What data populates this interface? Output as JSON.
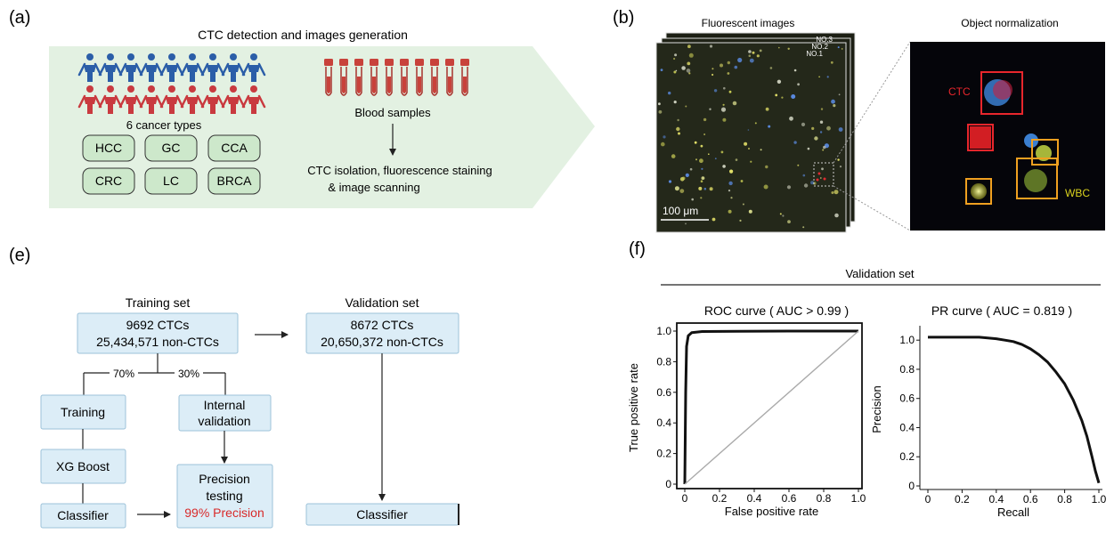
{
  "panels": {
    "a": {
      "label": "(a)",
      "title": "CTC detection and images generation",
      "cancer_label": "6 cancer types",
      "cancer_types": [
        "HCC",
        "GC",
        "CCA",
        "CRC",
        "LC",
        "BRCA"
      ],
      "blood_label": "Blood samples",
      "process_line1": "CTC isolation, fluorescence staining",
      "process_line2": "& image scanning",
      "colors": {
        "arrow_bg": "#e3f1e2",
        "person_blue": "#2b5ea8",
        "person_red": "#c93a3f",
        "pill": "#cde8cb",
        "tube": "#c8423b"
      }
    },
    "b": {
      "label": "(b)",
      "fluor_title": "Fluorescent images",
      "norm_title": "Object normalization",
      "stack_labels": [
        "NO.3",
        "NO.2",
        "NO.1"
      ],
      "scale_bar": "100 μm",
      "ctc_label": "CTC",
      "wbc_label": "WBC",
      "colors": {
        "ctc": "#e8262c",
        "wbc": "#f0a020",
        "wbc_text": "#d9d21e"
      }
    },
    "e": {
      "label": "(e)",
      "training_title": "Training set",
      "training_line1": "9692 CTCs",
      "training_line2": "25,434,571 non-CTCs",
      "validation_title": "Validation set",
      "validation_line1": "8672 CTCs",
      "validation_line2": "20,650,372 non-CTCs",
      "split_left": "70%",
      "split_right": "30%",
      "training": "Training",
      "internal_line1": "Internal",
      "internal_line2": "validation",
      "xgboost": "XG Boost",
      "precision_line1": "Precision",
      "precision_line2": "testing",
      "precision_value": "99% Precision",
      "classifier_left": "Classifier",
      "classifier_right": "Classifier",
      "colors": {
        "box_fill": "#dcedf7",
        "box_stroke": "#9cc2d9",
        "highlight": "#d82a2a"
      }
    },
    "f": {
      "label": "(f)",
      "header": "Validation set"
    }
  },
  "chart_data": [
    {
      "type": "line",
      "title": "ROC curve ( AUC > 0.99 )",
      "xlabel": "False positive rate",
      "ylabel": "True positive rate",
      "xlim": [
        0,
        1
      ],
      "ylim": [
        0,
        1
      ],
      "xticks": [
        "0",
        "0.2",
        "0.4",
        "0.6",
        "0.8",
        "1.0"
      ],
      "yticks": [
        "0",
        "0.2",
        "0.4",
        "0.6",
        "0.8",
        "1.0"
      ],
      "series": [
        {
          "x": [
            0,
            0.005,
            0.01,
            0.02,
            0.04,
            0.1,
            0.3,
            0.6,
            1.0
          ],
          "y": [
            0,
            0.6,
            0.9,
            0.97,
            0.99,
            0.997,
            0.999,
            1.0,
            1.0
          ],
          "color": "#111111"
        },
        {
          "x": [
            0,
            1
          ],
          "y": [
            0,
            1
          ],
          "color": "#aaaaaa"
        }
      ],
      "grid": false
    },
    {
      "type": "line",
      "title": "PR curve ( AUC =  0.819 )",
      "xlabel": "Recall",
      "ylabel": "Precision",
      "xlim": [
        0,
        1
      ],
      "ylim": [
        0,
        1.05
      ],
      "xticks": [
        "0",
        "0.2",
        "0.4",
        "0.6",
        "0.8",
        "1.0"
      ],
      "yticks": [
        "0",
        "0.2",
        "0.4",
        "0.6",
        "0.8",
        "1.0"
      ],
      "series": [
        {
          "x": [
            0,
            0.1,
            0.2,
            0.3,
            0.4,
            0.45,
            0.5,
            0.55,
            0.6,
            0.65,
            0.7,
            0.75,
            0.8,
            0.85,
            0.9,
            0.93,
            0.96,
            0.98,
            1.0
          ],
          "y": [
            1.02,
            1.02,
            1.02,
            1.02,
            1.01,
            1.0,
            0.99,
            0.97,
            0.94,
            0.9,
            0.85,
            0.78,
            0.7,
            0.59,
            0.45,
            0.34,
            0.2,
            0.1,
            0.02
          ],
          "color": "#111111"
        }
      ],
      "grid": false
    }
  ]
}
